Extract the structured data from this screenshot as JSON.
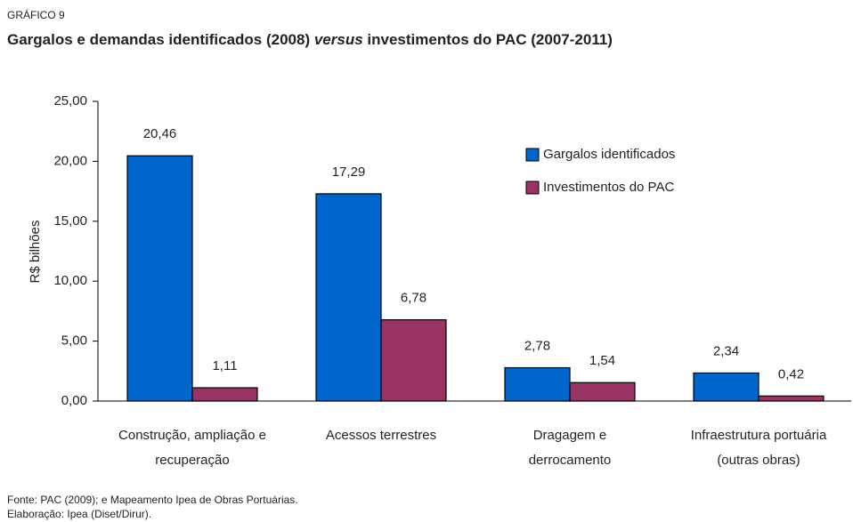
{
  "chart_data": {
    "type": "bar",
    "supertitle": "GRÁFICO 9",
    "title_parts": [
      "Gargalos e demandas identificados (2008) ",
      "versus",
      " investimentos do PAC (2007-2011)"
    ],
    "ylabel": "R$ bilhões",
    "categories": [
      [
        "Construção, ampliação e",
        "recuperação"
      ],
      [
        "Acessos terrestres"
      ],
      [
        "Dragagem e",
        "derrocamento"
      ],
      [
        "Infraestrutura portuária",
        "(outras obras)"
      ]
    ],
    "series": [
      {
        "name": "Gargalos identificados",
        "color": "#0066cc",
        "values": [
          20.46,
          17.29,
          2.78,
          2.34
        ],
        "value_labels": [
          "20,46",
          "17,29",
          "2,78",
          "2,34"
        ]
      },
      {
        "name": "Investimentos do PAC",
        "color": "#993366",
        "values": [
          1.11,
          6.78,
          1.54,
          0.42
        ],
        "value_labels": [
          "1,11",
          "6,78",
          "1,54",
          "0,42"
        ]
      }
    ],
    "ylim": [
      0,
      25
    ],
    "yticks": [
      {
        "value": 0,
        "label": "0,00"
      },
      {
        "value": 5,
        "label": "5,00"
      },
      {
        "value": 10,
        "label": "10,00"
      },
      {
        "value": 15,
        "label": "15,00"
      },
      {
        "value": 20,
        "label": "20,00"
      },
      {
        "value": 25,
        "label": "25,00"
      }
    ],
    "grid": false,
    "legend": "upper right",
    "notes": [
      "Fonte: PAC (2009); e Mapeamento Ipea de Obras Portuárias.",
      "Elaboração: Ipea (Diset/Dirur)."
    ]
  }
}
